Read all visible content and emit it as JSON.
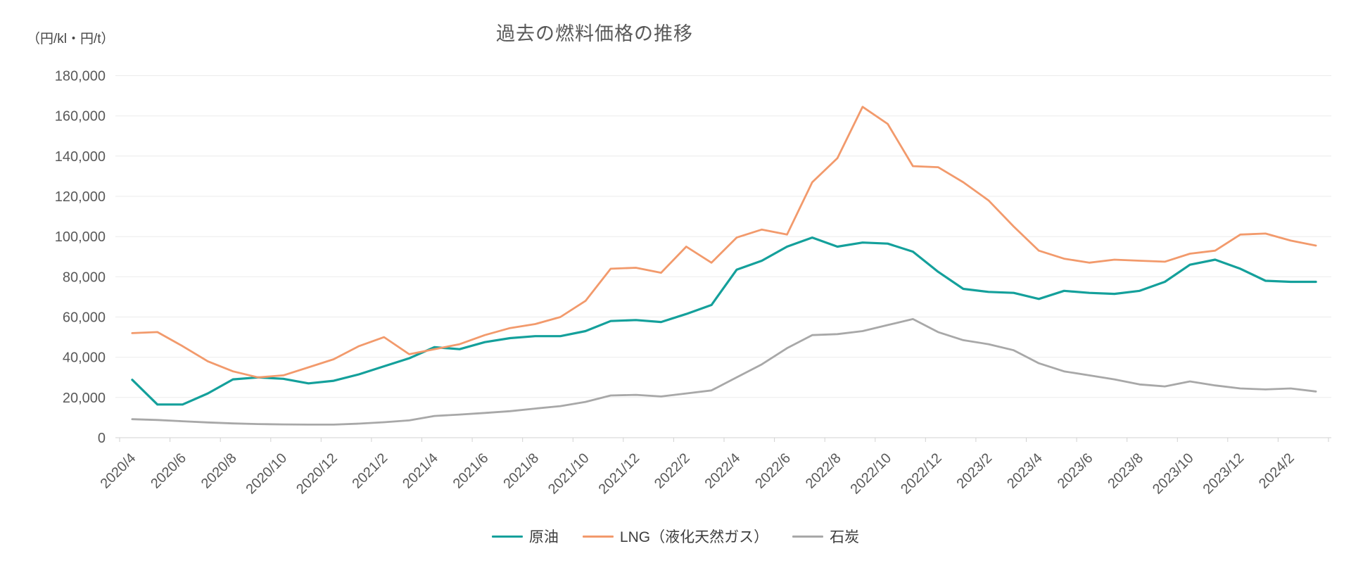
{
  "title": "過去の燃料価格の推移",
  "y_axis_unit": "（円/kl・円/t）",
  "chart_data": {
    "type": "line",
    "title": "過去の燃料価格の推移",
    "ylabel": "（円/kl・円/t）",
    "xlabel": "",
    "ylim": [
      0,
      180000
    ],
    "grid": "horizontal",
    "legend_position": "bottom",
    "grid_color": "#ebebeb",
    "axis_color": "#d2d2d2",
    "tick_label_color": "#595959",
    "x": [
      "2020/4",
      "2020/5",
      "2020/6",
      "2020/7",
      "2020/8",
      "2020/9",
      "2020/10",
      "2020/11",
      "2020/12",
      "2021/1",
      "2021/2",
      "2021/3",
      "2021/4",
      "2021/5",
      "2021/6",
      "2021/7",
      "2021/8",
      "2021/9",
      "2021/10",
      "2021/11",
      "2021/12",
      "2022/1",
      "2022/2",
      "2022/3",
      "2022/4",
      "2022/5",
      "2022/6",
      "2022/7",
      "2022/8",
      "2022/9",
      "2022/10",
      "2022/11",
      "2022/12",
      "2023/1",
      "2023/2",
      "2023/3",
      "2023/4",
      "2023/5",
      "2023/6",
      "2023/7",
      "2023/8",
      "2023/9",
      "2023/10",
      "2023/11",
      "2023/12",
      "2024/1",
      "2024/2",
      "2024/3"
    ],
    "x_tick_labels": [
      "2020/4",
      "2020/6",
      "2020/8",
      "2020/10",
      "2020/12",
      "2021/2",
      "2021/4",
      "2021/6",
      "2021/8",
      "2021/10",
      "2021/12",
      "2022/2",
      "2022/4",
      "2022/6",
      "2022/8",
      "2022/10",
      "2022/12",
      "2023/2",
      "2023/4",
      "2023/6",
      "2023/8",
      "2023/10",
      "2023/12",
      "2024/2"
    ],
    "y_ticks": [
      0,
      20000,
      40000,
      60000,
      80000,
      100000,
      120000,
      140000,
      160000,
      180000
    ],
    "y_tick_labels": [
      "0",
      "20,000",
      "40,000",
      "60,000",
      "80,000",
      "100,000",
      "120,000",
      "140,000",
      "160,000",
      "180,000"
    ],
    "series": [
      {
        "name": "原油",
        "color": "#14a09b",
        "values": [
          28800,
          16500,
          16500,
          22000,
          29000,
          30000,
          29300,
          27000,
          28300,
          31500,
          35500,
          39500,
          45000,
          44000,
          47500,
          49500,
          50500,
          50500,
          53000,
          58000,
          58500,
          57500,
          61500,
          66000,
          83500,
          88000,
          95000,
          99500,
          95000,
          97000,
          96500,
          92500,
          82500,
          74000,
          72500,
          72000,
          69000,
          73000,
          72000,
          71500,
          73000,
          77500,
          86000,
          88500,
          84000,
          78000,
          77500,
          77500
        ]
      },
      {
        "name": "LNG（液化天然ガス）",
        "color": "#f29a6c",
        "values": [
          52000,
          52500,
          45500,
          38000,
          33000,
          30000,
          31000,
          35000,
          39000,
          45500,
          50000,
          41500,
          44000,
          46500,
          51000,
          54500,
          56500,
          60000,
          68000,
          84000,
          84500,
          82000,
          95000,
          87000,
          99500,
          103500,
          101000,
          127000,
          139000,
          164500,
          156000,
          135000,
          134500,
          127000,
          118000,
          105000,
          93000,
          89000,
          87000,
          88500,
          88000,
          87500,
          91500,
          93000,
          101000,
          101500,
          98000,
          95500
        ]
      },
      {
        "name": "石炭",
        "color": "#a8a8a8",
        "values": [
          9200,
          8800,
          8200,
          7600,
          7100,
          6800,
          6600,
          6500,
          6500,
          7000,
          7700,
          8600,
          10800,
          11500,
          12300,
          13200,
          14500,
          15700,
          17800,
          21000,
          21300,
          20500,
          22000,
          23500,
          30000,
          36500,
          44500,
          51000,
          51500,
          53000,
          56000,
          59000,
          52500,
          48500,
          46500,
          43500,
          37000,
          33000,
          31000,
          29000,
          26500,
          25500,
          28000,
          26000,
          24500,
          24000,
          24500,
          23000
        ]
      }
    ]
  }
}
